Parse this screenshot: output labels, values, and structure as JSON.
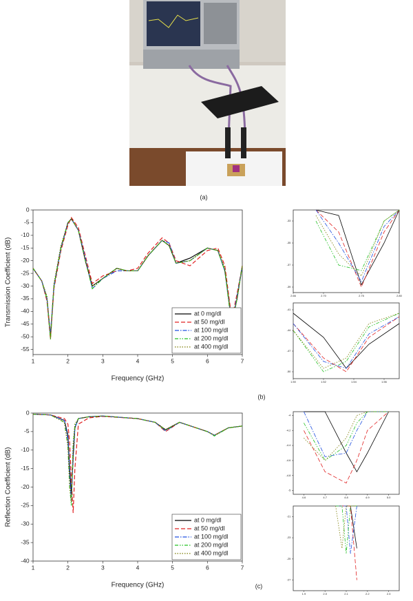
{
  "panels": [
    {
      "caption": "(a)"
    },
    {
      "caption": "(b)"
    },
    {
      "caption": "(c)"
    }
  ],
  "chart_data": [
    {
      "type": "line",
      "ylabel": "Transmission Coefficient (dB)",
      "xlabel": "Frequency (GHz)",
      "legend": "lower right",
      "x": [
        1,
        1.25,
        1.4,
        1.5,
        1.6,
        1.8,
        2.0,
        2.1,
        2.3,
        2.5,
        2.7,
        3.0,
        3.4,
        3.7,
        4.0,
        4.3,
        4.7,
        4.9,
        5.1,
        5.5,
        6.0,
        6.3,
        6.5,
        6.7,
        6.85,
        7
      ],
      "xlim": [
        1,
        7
      ],
      "xticks": [
        1,
        2,
        3,
        4,
        5,
        6,
        7
      ],
      "ylim": [
        -57,
        0
      ],
      "yticks": [
        0,
        -5,
        -10,
        -15,
        -20,
        -25,
        -30,
        -35,
        -40,
        -45,
        -50,
        -55
      ],
      "series": [
        {
          "name": "at 0 mg/dl",
          "color": "#000000",
          "dash": "solid",
          "values": [
            -23,
            -28,
            -35,
            -50,
            -30,
            -15,
            -5,
            -3.5,
            -8,
            -20,
            -30,
            -27,
            -23,
            -24,
            -24,
            -18,
            -12,
            -14,
            -21,
            -19,
            -15,
            -16,
            -24,
            -44,
            -35,
            -22
          ]
        },
        {
          "name": "at 50 mg/dl",
          "color": "#e02020",
          "dash": "dashed",
          "values": [
            -23,
            -28,
            -36,
            -51,
            -31,
            -16,
            -6,
            -3,
            -7,
            -18,
            -29,
            -26,
            -24,
            -24,
            -23,
            -17,
            -11,
            -13,
            -20,
            -22,
            -16,
            -15,
            -22,
            -43,
            -33,
            -22
          ]
        },
        {
          "name": "at 100 mg/dl",
          "color": "#1f4fe0",
          "dash": "dashdot",
          "values": [
            -23,
            -28,
            -35,
            -49,
            -30,
            -15,
            -5,
            -3.5,
            -8,
            -19,
            -31,
            -27,
            -24,
            -24,
            -24,
            -18,
            -12,
            -13,
            -21,
            -20,
            -15,
            -16,
            -24,
            -45,
            -34,
            -22
          ]
        },
        {
          "name": "at 200 mg/dl",
          "color": "#22c022",
          "dash": "dashdotdot",
          "values": [
            -23,
            -28,
            -35,
            -51,
            -30,
            -15,
            -5,
            -3.5,
            -8,
            -20,
            -31,
            -27,
            -23,
            -24,
            -24,
            -18,
            -12,
            -14,
            -21,
            -20,
            -15,
            -16,
            -24,
            -46,
            -35,
            -22
          ]
        },
        {
          "name": "at 400 mg/dl",
          "color": "#7a7a00",
          "dash": "dotted",
          "values": [
            -23,
            -28,
            -34,
            -50,
            -29,
            -14,
            -5,
            -3.5,
            -8,
            -20,
            -30,
            -27,
            -23,
            -24,
            -24,
            -18,
            -12,
            -14,
            -21,
            -20,
            -15,
            -16,
            -23,
            -45,
            -35,
            -22
          ]
        }
      ]
    },
    {
      "type": "line",
      "x": [
        2.69,
        2.72,
        2.75,
        2.78,
        2.8
      ],
      "xlim": [
        2.66,
        2.8
      ],
      "xticks": [
        2.66,
        {
          "value": 2.7,
          "label": "2.70"
        },
        2.75,
        {
          "value": 2.8,
          "label": "2.80"
        }
      ],
      "ylim": [
        -39.5,
        -32
      ],
      "yticks": [
        -33,
        -35,
        -37,
        -39
      ],
      "series": [
        {
          "color": "#000000",
          "dash": "solid",
          "values": [
            -32,
            -32.5,
            -38.8,
            -35,
            -32
          ]
        },
        {
          "color": "#e02020",
          "dash": "dashed",
          "values": [
            -32,
            -34,
            -39,
            -34,
            -32
          ]
        },
        {
          "color": "#1f4fe0",
          "dash": "dashdot",
          "values": [
            -32,
            -35,
            -38.5,
            -33.5,
            -32
          ]
        },
        {
          "color": "#22c022",
          "dash": "dashdotdot",
          "values": [
            -33,
            -37,
            -37.5,
            -33,
            -32
          ]
        },
        {
          "color": "#7a7a00",
          "dash": "dotted",
          "values": [
            -32.5,
            -36,
            -38,
            -33,
            -32
          ]
        }
      ]
    },
    {
      "type": "line",
      "x": [
        1.5,
        1.52,
        1.535,
        1.55,
        1.57
      ],
      "xlim": [
        1.5,
        1.57
      ],
      "xticks": [
        {
          "value": 1.5,
          "label": "1.50"
        },
        1.52,
        1.54,
        1.56
      ],
      "ylim": [
        -51,
        -40
      ],
      "yticks": [
        -41,
        -44,
        -47,
        -50
      ],
      "series": [
        {
          "color": "#000000",
          "dash": "solid",
          "values": [
            -41.5,
            -45,
            -49.5,
            -46,
            -43
          ]
        },
        {
          "color": "#e02020",
          "dash": "dashed",
          "values": [
            -43,
            -48,
            -50,
            -45,
            -42
          ]
        },
        {
          "color": "#1f4fe0",
          "dash": "dashdot",
          "values": [
            -43,
            -48.5,
            -49.5,
            -44.5,
            -42
          ]
        },
        {
          "color": "#22c022",
          "dash": "dashdotdot",
          "values": [
            -44,
            -50,
            -48.5,
            -43.5,
            -41.5
          ]
        },
        {
          "color": "#7a7a00",
          "dash": "dotted",
          "values": [
            -44,
            -49.5,
            -48,
            -43,
            -41.5
          ]
        }
      ]
    },
    {
      "type": "line",
      "x": [
        4.6,
        4.7,
        4.8,
        4.85,
        4.9,
        5.0
      ],
      "xlim": [
        4.55,
        5.05
      ],
      "xticks": [
        4.6,
        4.7,
        4.8,
        4.9,
        {
          "value": 5,
          "label": "5.0"
        }
      ],
      "ylim": [
        -5.05,
        -3.95
      ],
      "yticks": [
        -4,
        -4.2,
        -4.4,
        -4.6,
        -4.8,
        -5
      ],
      "series": [
        {
          "color": "#000000",
          "dash": "solid",
          "values": [
            -3.95,
            -3.95,
            -4.5,
            -4.75,
            -4.5,
            -3.95
          ]
        },
        {
          "color": "#e02020",
          "dash": "dashed",
          "values": [
            -4.2,
            -4.75,
            -4.9,
            -4.6,
            -4.2,
            -3.95
          ]
        },
        {
          "color": "#1f4fe0",
          "dash": "dashdot",
          "values": [
            -3.95,
            -4.55,
            -4.5,
            -4.2,
            -3.95,
            -3.95
          ]
        },
        {
          "color": "#22c022",
          "dash": "dashdotdot",
          "values": [
            -4.1,
            -4.6,
            -4.4,
            -4.1,
            -3.95,
            -3.95
          ]
        },
        {
          "color": "#7a7a00",
          "dash": "dotted",
          "values": [
            -4.3,
            -4.6,
            -4.3,
            -4.0,
            -3.95,
            -3.95
          ]
        }
      ]
    },
    {
      "type": "line",
      "x": [
        2.05,
        2.08,
        2.1,
        2.12,
        2.15
      ],
      "xlim": [
        1.85,
        2.35
      ],
      "xticks": [
        1.9,
        {
          "value": 2,
          "label": "2.0"
        },
        2.1,
        2.2,
        2.3
      ],
      "ylim": [
        -28,
        -20
      ],
      "yticks": [
        -21,
        -23,
        -25,
        -27
      ],
      "series": [
        {
          "color": "#000000",
          "dash": "solid",
          "values": [
            -20,
            -20,
            -20,
            -20,
            -24
          ]
        },
        {
          "color": "#e02020",
          "dash": "dashed",
          "values": [
            -20,
            -20,
            -20,
            -20,
            -27
          ]
        },
        {
          "color": "#1f4fe0",
          "dash": "dashdot",
          "values": [
            -20,
            -20,
            -20,
            -24.5,
            -20
          ]
        },
        {
          "color": "#22c022",
          "dash": "dashdotdot",
          "values": [
            -20,
            -20,
            -24.5,
            -20,
            -20
          ]
        },
        {
          "color": "#7a7a00",
          "dash": "dotted",
          "values": [
            -20,
            -24,
            -20,
            -20,
            -20
          ]
        }
      ]
    },
    {
      "type": "line",
      "ylabel": "Reflection Coefficient (dB)",
      "xlabel": "Frequency (GHz)",
      "legend": "lower right",
      "x": [
        1,
        1.5,
        1.9,
        2.0,
        2.05,
        2.1,
        2.15,
        2.2,
        2.3,
        2.6,
        3,
        4,
        4.5,
        4.8,
        5.2,
        6.0,
        6.2,
        6.6,
        7
      ],
      "xlim": [
        1,
        7
      ],
      "xticks": [
        1,
        2,
        3,
        4,
        5,
        6,
        7
      ],
      "ylim": [
        -40,
        0
      ],
      "yticks": [
        0,
        -5,
        -10,
        -15,
        -20,
        -25,
        -30,
        -35,
        -40
      ],
      "series": [
        {
          "name": "at 0 mg/dl",
          "color": "#000000",
          "dash": "solid",
          "values": [
            -0.3,
            -0.5,
            -2,
            -6,
            -15,
            -22,
            -12,
            -4,
            -1.5,
            -1,
            -0.8,
            -1.5,
            -2.5,
            -4.5,
            -2.5,
            -5,
            -6,
            -4,
            -3.5
          ]
        },
        {
          "name": "at 50 mg/dl",
          "color": "#e02020",
          "dash": "dashed",
          "values": [
            -0.3,
            -0.5,
            -1.5,
            -3,
            -8,
            -18,
            -27,
            -15,
            -3,
            -1.3,
            -0.9,
            -1.5,
            -2.5,
            -5,
            -2.5,
            -5,
            -6,
            -4,
            -3.5
          ]
        },
        {
          "name": "at 100 mg/dl",
          "color": "#1f4fe0",
          "dash": "dashdot",
          "values": [
            -0.3,
            -0.5,
            -2,
            -7,
            -17,
            -24,
            -10,
            -4,
            -1.5,
            -1,
            -0.8,
            -1.5,
            -2.5,
            -4.8,
            -2.5,
            -5,
            -6,
            -4,
            -3.5
          ]
        },
        {
          "name": "at 200 mg/dl",
          "color": "#22c022",
          "dash": "dashdotdot",
          "values": [
            -0.3,
            -0.5,
            -2.5,
            -9,
            -20,
            -25,
            -9,
            -3.5,
            -1.5,
            -1,
            -0.8,
            -1.5,
            -2.5,
            -4.6,
            -2.5,
            -5,
            -6.2,
            -4,
            -3.5
          ]
        },
        {
          "name": "at 400 mg/dl",
          "color": "#7a7a00",
          "dash": "dotted",
          "values": [
            -0.3,
            -0.5,
            -2.5,
            -9,
            -20,
            -24,
            -8,
            -3,
            -1.5,
            -1,
            -0.8,
            -1.5,
            -2.5,
            -4.5,
            -2.5,
            -5,
            -6,
            -4,
            -3.5
          ]
        }
      ]
    }
  ]
}
